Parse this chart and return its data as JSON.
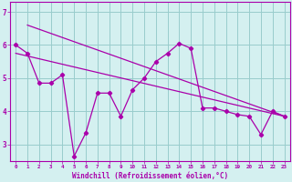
{
  "xlabel": "Windchill (Refroidissement éolien,°C)",
  "xlim": [
    -0.5,
    23.5
  ],
  "ylim": [
    2.5,
    7.3
  ],
  "yticks": [
    3,
    4,
    5,
    6,
    7
  ],
  "xticks": [
    0,
    1,
    2,
    3,
    4,
    5,
    6,
    7,
    8,
    9,
    10,
    11,
    12,
    13,
    14,
    15,
    16,
    17,
    18,
    19,
    20,
    21,
    22,
    23
  ],
  "bg_color": "#d4f0f0",
  "line_color": "#aa00aa",
  "grid_color": "#99cccc",
  "line1_x": [
    0,
    1,
    2,
    3,
    4,
    5,
    6,
    7,
    8,
    9,
    10,
    11,
    12,
    13,
    14,
    15,
    16,
    17,
    18,
    19,
    20,
    21,
    22,
    23
  ],
  "line1_y": [
    6.0,
    5.75,
    4.85,
    4.85,
    5.1,
    2.65,
    3.35,
    4.55,
    4.55,
    3.85,
    4.65,
    5.0,
    5.5,
    5.75,
    6.05,
    5.9,
    4.1,
    4.1,
    4.0,
    3.9,
    3.85,
    3.3,
    4.0,
    3.85
  ],
  "line2_x": [
    1,
    23
  ],
  "line2_y": [
    6.6,
    3.85
  ],
  "line3_x": [
    0,
    23
  ],
  "line3_y": [
    5.75,
    3.85
  ]
}
